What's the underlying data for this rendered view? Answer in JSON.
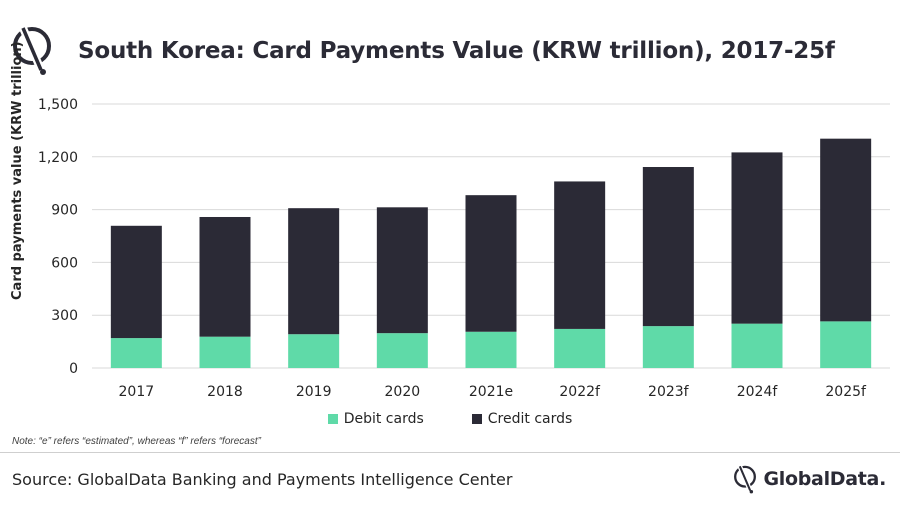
{
  "title": "South Korea: Card Payments Value (KRW trillion), 2017-25f",
  "note": "Note: “e” refers “estimated”, whereas “f” refers “forecast”",
  "source": "Source: GlobalData Banking and Payments Intelligence Center",
  "brand": "GlobalData.",
  "colors": {
    "debit": "#5fdaa8",
    "credit": "#2b2a36",
    "grid": "#d9d9d9",
    "text": "#262626"
  },
  "chart_data": {
    "type": "bar",
    "stacked": true,
    "categories": [
      "2017",
      "2018",
      "2019",
      "2020",
      "2021e",
      "2022f",
      "2023f",
      "2024f",
      "2025f"
    ],
    "series": [
      {
        "name": "Debit cards",
        "values": [
          170,
          178,
          192,
          198,
          206,
          222,
          238,
          252,
          265
        ]
      },
      {
        "name": "Credit cards",
        "values": [
          638,
          680,
          716,
          715,
          776,
          838,
          904,
          973,
          1038
        ]
      }
    ],
    "ylabel": "Card payments value (KRW trillion)",
    "ylim": [
      0,
      1500
    ],
    "yticks": [
      "0",
      "300",
      "600",
      "900",
      "1,200",
      "1,500"
    ],
    "grid": true,
    "legend": "bottom"
  }
}
